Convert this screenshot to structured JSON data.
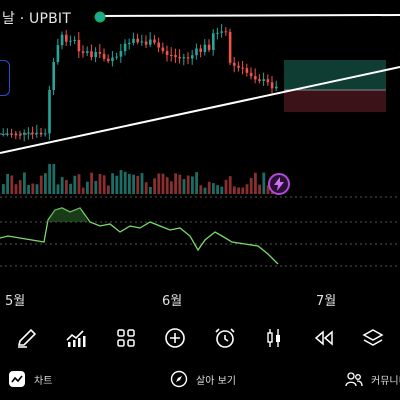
{
  "header": {
    "title": "날 · UPBIT"
  },
  "colors": {
    "up": "#26a69a",
    "down": "#ef5350",
    "osc": "#7bd96b",
    "trend": "#ffffff",
    "zone_tp": "#0f3d33",
    "zone_sl": "#3a1217",
    "lightning": "#b24bd6"
  },
  "months": [
    "5월",
    "6월",
    "7월"
  ],
  "toolbar": {
    "items": [
      {
        "name": "pen-icon"
      },
      {
        "name": "indicator-icon"
      },
      {
        "name": "grid-icon"
      },
      {
        "name": "add-circle-icon"
      },
      {
        "name": "alarm-icon"
      },
      {
        "name": "candle-icon"
      },
      {
        "name": "rewind-icon"
      },
      {
        "name": "layers-icon"
      }
    ]
  },
  "bottom_nav": {
    "chart_label": "차트",
    "explore_label": "살아 보기",
    "community_label": "커뮤니티"
  }
}
